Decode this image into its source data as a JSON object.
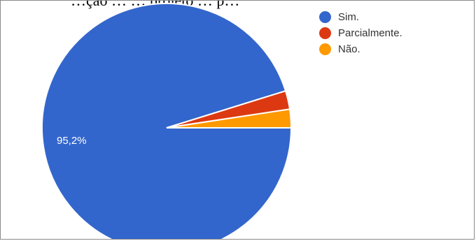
{
  "chart_data": {
    "type": "pie",
    "title": "…ção … … projeto … p…",
    "categories": [
      "Sim.",
      "Parcialmente.",
      "Não."
    ],
    "values": [
      95.2,
      2.4,
      2.4
    ],
    "colors": [
      "#3366cc",
      "#dc3912",
      "#ff9900"
    ],
    "data_labels": [
      "95,2%",
      "",
      ""
    ],
    "legend_position": "top-right"
  }
}
